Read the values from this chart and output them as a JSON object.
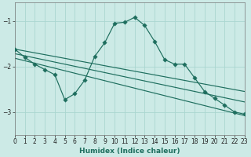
{
  "xlabel": "Humidex (Indice chaleur)",
  "bg_color": "#cceae6",
  "grid_color": "#aad6d0",
  "line_color": "#1e6e5e",
  "xlim": [
    0,
    23
  ],
  "ylim": [
    -3.5,
    -0.6
  ],
  "yticks": [
    -3,
    -2,
    -1
  ],
  "xticks": [
    0,
    1,
    2,
    3,
    4,
    5,
    6,
    7,
    8,
    9,
    10,
    11,
    12,
    13,
    14,
    15,
    16,
    17,
    18,
    19,
    20,
    21,
    22,
    23
  ],
  "main_x": [
    0,
    1,
    2,
    3,
    4,
    5,
    6,
    7,
    8,
    9,
    10,
    11,
    12,
    13,
    14,
    15,
    16,
    17,
    18,
    19,
    20,
    21,
    22,
    23
  ],
  "main_y": [
    -1.62,
    -1.8,
    -1.95,
    -2.07,
    -2.18,
    -2.73,
    -2.6,
    -2.3,
    -1.78,
    -1.48,
    -1.05,
    -1.03,
    -0.92,
    -1.1,
    -1.45,
    -1.85,
    -1.95,
    -1.95,
    -2.25,
    -2.55,
    -2.7,
    -2.85,
    -3.0,
    -3.05
  ],
  "reg_lines": [
    {
      "x": [
        0,
        23
      ],
      "y": [
        -1.62,
        -2.55
      ]
    },
    {
      "x": [
        0,
        23
      ],
      "y": [
        -1.72,
        -2.78
      ]
    },
    {
      "x": [
        0,
        23
      ],
      "y": [
        -1.82,
        -3.08
      ]
    }
  ]
}
